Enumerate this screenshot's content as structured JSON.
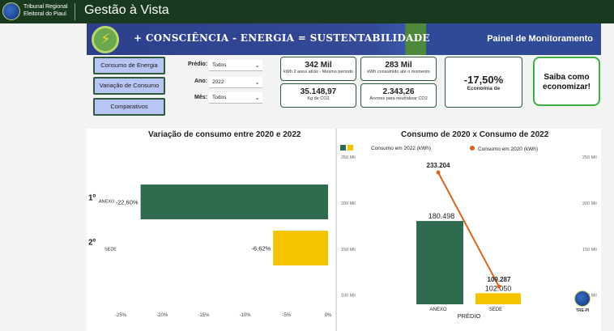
{
  "header": {
    "org_line1": "Tribunal Regional",
    "org_line2": "Eleitoral do Piauí",
    "app_title": "Gestão à Vista"
  },
  "banner": {
    "slogan": "+ CONSCIÊNCIA - ENERGIA =  SUSTENTABILIDADE",
    "panel_label": "Painel de Monitoramento"
  },
  "nav": {
    "consumo_energia": "Consumo de Energia",
    "variacao_consumo": "Variação de Consumo",
    "comparativos": "Comparativos"
  },
  "filters": {
    "predio_label": "Prédio:",
    "predio_value": "Todos",
    "ano_label": "Ano:",
    "ano_value": "2022",
    "mes_label": "Mês:",
    "mes_value": "Todos"
  },
  "kpis": {
    "kwh_2anos_value": "342 Mil",
    "kwh_2anos_caption": "kWh 2 anos atrás - Mesmo período",
    "kwh_atual_value": "283 Mil",
    "kwh_atual_caption": "kWh consumido até o momento",
    "co2_value": "35.148,97",
    "co2_caption": "Kg de CO2",
    "arvores_value": "2.343,26",
    "arvores_caption": "Árvores para neutralizar CO2",
    "economia_value": "-17,50%",
    "economia_caption": "Economia de"
  },
  "save_button": "Saiba como economizar!",
  "tre_label": "TRE-PI",
  "colors": {
    "anexo": "#2e6b4f",
    "sede": "#f5c400",
    "line_2020": "#d9641c",
    "topbar": "#1a3a20"
  },
  "chart_data": [
    {
      "type": "bar",
      "orientation": "horizontal",
      "title": "Variação de consumo entre 2020 e 2022",
      "categories": [
        "ANEXO",
        "SEDE"
      ],
      "ranks": [
        "1º",
        "2º"
      ],
      "values": [
        -22.6,
        -6.62
      ],
      "data_labels": [
        "-22,60%",
        "-6,62%"
      ],
      "xlim": [
        -25,
        0
      ],
      "x_ticks": [
        "-25%",
        "-20%",
        "-15%",
        "-10%",
        "-5%",
        "0%"
      ]
    },
    {
      "type": "bar",
      "title": "Consumo de 2020 x Consumo de 2022",
      "xlabel": "PRÉDIO",
      "categories": [
        "ANEXO",
        "SEDE"
      ],
      "series": [
        {
          "name": "Consumo em 2022 (kWh)",
          "type": "bar",
          "values": [
            180498,
            102050
          ],
          "data_labels": [
            "180.498",
            "102.050"
          ]
        },
        {
          "name": "Consumo em 2020 (kWh)",
          "type": "line",
          "values": [
            233204,
            109287
          ],
          "data_labels": [
            "233.204",
            "109.287"
          ]
        }
      ],
      "ylim": [
        90000,
        250000
      ],
      "y_left_ticks": [
        "250 Mil",
        "200 Mil",
        "150 Mil",
        "100 Mil"
      ],
      "y_right_ticks": [
        "250 Mil",
        "200 Mil",
        "150 Mil",
        "100 Mil"
      ]
    }
  ]
}
